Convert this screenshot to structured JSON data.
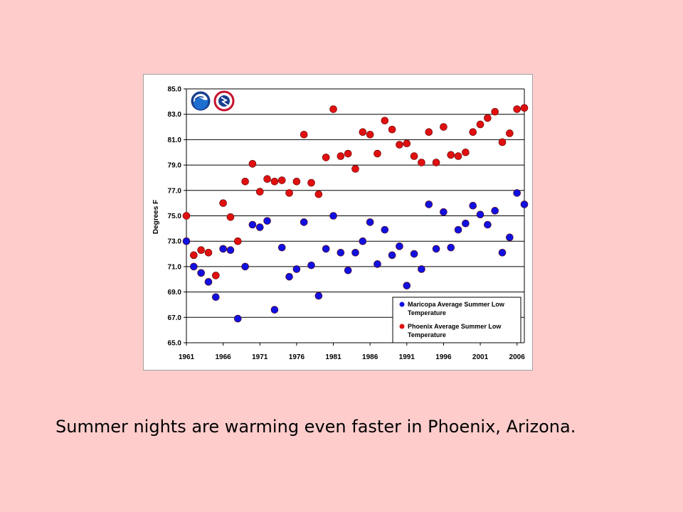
{
  "caption": "Summer nights are warming even faster in Phoenix, Arizona.",
  "chart_data": {
    "type": "scatter",
    "title": "",
    "xlabel": "",
    "ylabel": "Degrees F",
    "xlim": [
      1961,
      2007
    ],
    "ylim": [
      65.0,
      85.0
    ],
    "x_ticks": [
      "1961",
      "1966",
      "1971",
      "1976",
      "1981",
      "1986",
      "1991",
      "1996",
      "2001",
      "2006"
    ],
    "y_ticks": [
      "65.0",
      "67.0",
      "69.0",
      "71.0",
      "73.0",
      "75.0",
      "77.0",
      "79.0",
      "81.0",
      "83.0",
      "85.0"
    ],
    "grid": "horizontal",
    "legend_position": "bottom-right",
    "series": [
      {
        "name": "Maricopa Average Summer Low Temperature",
        "color": "#1010E0",
        "x": [
          1961,
          1962,
          1963,
          1964,
          1965,
          1966,
          1967,
          1968,
          1969,
          1970,
          1971,
          1972,
          1973,
          1974,
          1975,
          1976,
          1977,
          1978,
          1979,
          1980,
          1981,
          1982,
          1983,
          1984,
          1985,
          1986,
          1987,
          1988,
          1989,
          1990,
          1991,
          1992,
          1993,
          1994,
          1995,
          1996,
          1997,
          1998,
          1999,
          2000,
          2001,
          2002,
          2003,
          2004,
          2005,
          2006,
          2007
        ],
        "y": [
          73.0,
          71.0,
          70.5,
          69.8,
          68.6,
          72.4,
          72.3,
          66.9,
          71.0,
          74.3,
          74.1,
          74.6,
          67.6,
          72.5,
          70.2,
          70.8,
          74.5,
          71.1,
          68.7,
          72.4,
          75.0,
          72.1,
          70.7,
          72.1,
          73.0,
          74.5,
          71.2,
          73.9,
          71.9,
          72.6,
          69.5,
          72.0,
          70.8,
          75.9,
          72.4,
          75.3,
          72.5,
          73.9,
          74.4,
          75.8,
          75.1,
          74.3,
          75.4,
          72.1,
          73.3,
          76.8,
          75.9
        ]
      },
      {
        "name": "Phoenix Average Summer Low Temperature",
        "color": "#E01010",
        "x": [
          1961,
          1962,
          1963,
          1964,
          1965,
          1966,
          1967,
          1968,
          1969,
          1970,
          1971,
          1972,
          1973,
          1974,
          1975,
          1976,
          1977,
          1978,
          1979,
          1980,
          1981,
          1982,
          1983,
          1984,
          1985,
          1986,
          1987,
          1988,
          1989,
          1990,
          1991,
          1992,
          1993,
          1994,
          1995,
          1996,
          1997,
          1998,
          1999,
          2000,
          2001,
          2002,
          2003,
          2004,
          2005,
          2006,
          2007
        ],
        "y": [
          75.0,
          71.9,
          72.3,
          72.1,
          70.3,
          76.0,
          74.9,
          73.0,
          77.7,
          79.1,
          76.9,
          77.9,
          77.7,
          77.8,
          76.8,
          77.7,
          81.4,
          77.6,
          76.7,
          79.6,
          83.4,
          79.7,
          79.9,
          78.7,
          81.6,
          81.4,
          79.9,
          82.5,
          81.8,
          80.6,
          80.7,
          79.7,
          79.2,
          81.6,
          79.2,
          82.0,
          79.8,
          79.7,
          80.0,
          81.6,
          82.2,
          82.7,
          83.2,
          80.8,
          81.5,
          83.4,
          83.5
        ]
      }
    ]
  },
  "logos": {
    "noaa": "noaa-logo",
    "nws": "nws-logo"
  }
}
